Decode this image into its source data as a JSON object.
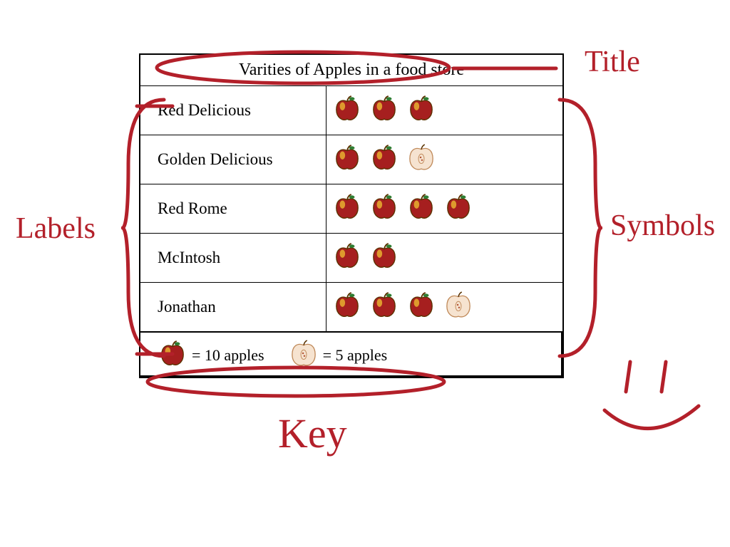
{
  "chart": {
    "type": "pictograph",
    "title": "Varities of Apples in a food store",
    "title_fontsize": 24,
    "label_fontsize": 23,
    "border_color": "#000000",
    "background_color": "#ffffff",
    "full_symbol_value": 10,
    "half_symbol_value": 5,
    "rows": [
      {
        "label": "Red Delicious",
        "full": 3,
        "half": 0,
        "value": 30
      },
      {
        "label": "Golden Delicious",
        "full": 2,
        "half": 1,
        "value": 25
      },
      {
        "label": "Red Rome",
        "full": 4,
        "half": 0,
        "value": 40
      },
      {
        "label": "McIntosh",
        "full": 2,
        "half": 0,
        "value": 20
      },
      {
        "label": "Jonathan",
        "full": 3,
        "half": 1,
        "value": 35
      }
    ],
    "key": {
      "full_label": "= 10 apples",
      "half_label": "= 5 apples"
    },
    "symbol": {
      "full_fill": "#a61f1f",
      "full_highlight": "#e8b030",
      "full_stroke": "#5a3200",
      "leaf": "#2e7d32",
      "half_fill": "#f6e3d0",
      "half_stroke": "#c08a5a",
      "half_core": "#b05030",
      "size": 38
    }
  },
  "annotations": {
    "color": "#b3202a",
    "stroke_width": 5,
    "font_family": "Comic Sans MS",
    "fontsize": 42,
    "title_label": "Title",
    "labels_label": "Labels",
    "symbols_label": "Symbols",
    "key_label": "Key",
    "smiley": true
  }
}
